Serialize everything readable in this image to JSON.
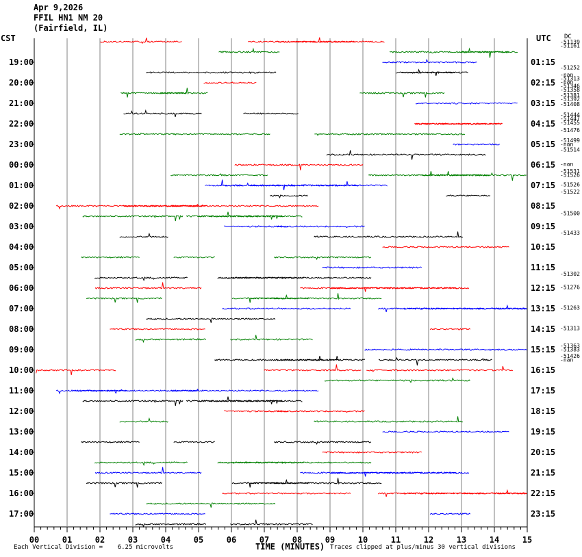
{
  "header": {
    "date": "Apr 9,2026",
    "station": "FFIL HN1 NM 20",
    "location": "(Fairfield, IL)"
  },
  "left_tz": "CST",
  "right_tz": "UTC",
  "dc_label": "DC",
  "footer": {
    "vertical_division": "Each Vertical Division =    6.25 microvolts",
    "xlabel": "TIME (MINUTES)",
    "clip_note": "Traces clipped at plus/minus 30 vertical divisions"
  },
  "colors": {
    "cycle": [
      "#ff0000",
      "#008000",
      "#0000ff",
      "#000000"
    ],
    "grid": "#808080"
  },
  "chart_data": {
    "type": "line",
    "x": {
      "ticks": [
        "00",
        "01",
        "02",
        "03",
        "04",
        "05",
        "06",
        "07",
        "08",
        "09",
        "10",
        "11",
        "12",
        "13",
        "14",
        "15"
      ],
      "range": [
        0,
        15
      ],
      "unit": "minutes"
    },
    "rows": 48,
    "row_minutes": 15,
    "left_hour_labels": [
      "19:00",
      "20:00",
      "21:00",
      "22:00",
      "23:00",
      "00:00",
      "01:00",
      "02:00",
      "03:00",
      "04:00",
      "05:00",
      "06:00",
      "07:00",
      "08:00",
      "09:00",
      "10:00",
      "11:00",
      "12:00",
      "13:00",
      "14:00",
      "15:00",
      "16:00",
      "17:00"
    ],
    "right_hour_labels": [
      "01:15",
      "02:15",
      "03:15",
      "04:15",
      "05:15",
      "06:15",
      "07:15",
      "08:15",
      "09:15",
      "10:15",
      "11:15",
      "12:15",
      "13:15",
      "14:15",
      "15:15",
      "16:15",
      "17:15",
      "18:15",
      "19:15",
      "20:15",
      "21:15",
      "22:15",
      "23:15"
    ],
    "dc_values": [
      {
        "row": 0,
        "text": "-51139"
      },
      {
        "row": 0.35,
        "text": "-51161"
      },
      {
        "row": 2.5,
        "text": "-51252"
      },
      {
        "row": 3.2,
        "text": "-nan"
      },
      {
        "row": 3.55,
        "text": "-51313"
      },
      {
        "row": 3.9,
        "text": "-nan"
      },
      {
        "row": 4.3,
        "text": "-51346"
      },
      {
        "row": 4.65,
        "text": "-51358"
      },
      {
        "row": 5.2,
        "text": "-51381"
      },
      {
        "row": 5.55,
        "text": "-51392"
      },
      {
        "row": 6.05,
        "text": "-51408"
      },
      {
        "row": 7.1,
        "text": "-51444"
      },
      {
        "row": 7.45,
        "text": "-51447"
      },
      {
        "row": 7.85,
        "text": "-51455"
      },
      {
        "row": 8.6,
        "text": "-51476"
      },
      {
        "row": 9.6,
        "text": "-51499"
      },
      {
        "row": 9.95,
        "text": "-nan"
      },
      {
        "row": 10.5,
        "text": "-51514"
      },
      {
        "row": 11.9,
        "text": "-nan"
      },
      {
        "row": 12.6,
        "text": "-51531"
      },
      {
        "row": 12.95,
        "text": "-51526"
      },
      {
        "row": 13.9,
        "text": "-51526"
      },
      {
        "row": 14.6,
        "text": "-51522"
      },
      {
        "row": 16.7,
        "text": "-51500"
      },
      {
        "row": 18.6,
        "text": "-51433"
      },
      {
        "row": 22.6,
        "text": "-51302"
      },
      {
        "row": 23.9,
        "text": "-51276"
      },
      {
        "row": 25.9,
        "text": "-51263"
      },
      {
        "row": 27.9,
        "text": "-51313"
      },
      {
        "row": 29.6,
        "text": "-51363"
      },
      {
        "row": 29.95,
        "text": "-51383"
      },
      {
        "row": 30.6,
        "text": "-51426"
      },
      {
        "row": 30.95,
        "text": "-nan"
      }
    ]
  }
}
